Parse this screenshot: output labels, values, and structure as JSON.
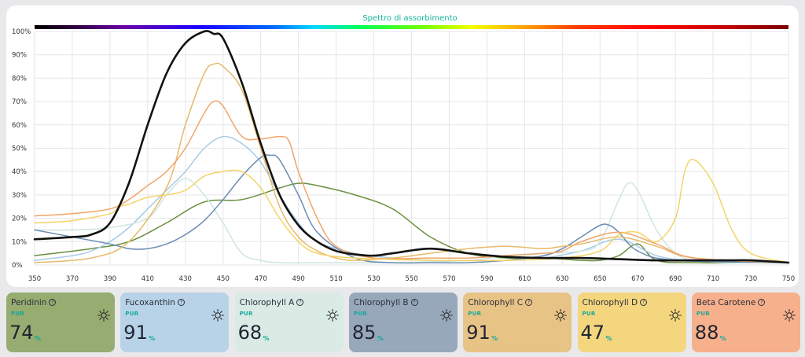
{
  "chart_data": {
    "type": "line",
    "title": "Spettro di assorbimento",
    "x_ticks": [
      350,
      370,
      390,
      410,
      430,
      450,
      470,
      490,
      510,
      530,
      550,
      570,
      590,
      610,
      630,
      650,
      670,
      690,
      710,
      730,
      750
    ],
    "y_ticks": [
      "0%",
      "10%",
      "20%",
      "30%",
      "40%",
      "50%",
      "60%",
      "70%",
      "80%",
      "90%",
      "100%"
    ],
    "xlim": [
      350,
      750
    ],
    "ylim": [
      0,
      100
    ],
    "grid": true,
    "legend": "none",
    "series": [
      {
        "color": "#6b8f3e",
        "x": [
          350,
          380,
          400,
          420,
          440,
          460,
          480,
          490,
          500,
          520,
          540,
          560,
          580,
          600,
          620,
          640,
          650,
          660,
          670,
          680,
          700,
          750
        ],
        "y": [
          4,
          7,
          10,
          18,
          27,
          28,
          33,
          35,
          34,
          30,
          24,
          12,
          5,
          3,
          3,
          2,
          2,
          4,
          9,
          2,
          1,
          1
        ]
      },
      {
        "color": "#a9cbe4",
        "x": [
          350,
          370,
          380,
          390,
          400,
          410,
          420,
          430,
          440,
          450,
          460,
          470,
          480,
          490,
          500,
          520,
          540,
          560,
          580,
          600,
          620,
          640,
          660,
          680,
          700,
          750
        ],
        "y": [
          2,
          4,
          6,
          10,
          16,
          24,
          32,
          40,
          50,
          55,
          52,
          44,
          30,
          18,
          10,
          5,
          3,
          2,
          2,
          2,
          3,
          6,
          11,
          4,
          2,
          1
        ]
      },
      {
        "color": "#cfe5df",
        "x": [
          350,
          370,
          390,
          410,
          420,
          430,
          440,
          450,
          460,
          470,
          480,
          500,
          540,
          580,
          600,
          620,
          640,
          650,
          660,
          665,
          670,
          680,
          690,
          700,
          720,
          750
        ],
        "y": [
          15,
          15,
          16,
          20,
          30,
          37,
          30,
          18,
          5,
          2,
          1,
          1,
          1,
          2,
          4,
          5,
          6,
          10,
          28,
          35,
          32,
          15,
          5,
          2,
          1,
          1
        ]
      },
      {
        "color": "#6b8cb3",
        "x": [
          350,
          370,
          390,
          400,
          410,
          420,
          430,
          440,
          450,
          460,
          470,
          475,
          480,
          490,
          500,
          520,
          540,
          560,
          580,
          600,
          620,
          630,
          640,
          650,
          655,
          660,
          670,
          690,
          750
        ],
        "y": [
          15,
          12,
          9,
          7,
          7,
          9,
          13,
          19,
          28,
          38,
          46,
          47,
          45,
          30,
          14,
          3,
          1,
          1,
          1,
          2,
          4,
          7,
          12,
          17,
          17,
          14,
          6,
          2,
          1
        ]
      },
      {
        "color": "#e6b969",
        "x": [
          350,
          380,
          400,
          420,
          430,
          440,
          445,
          450,
          460,
          470,
          480,
          490,
          500,
          510,
          520,
          540,
          560,
          580,
          600,
          620,
          630,
          640,
          660,
          680,
          700,
          750
        ],
        "y": [
          1,
          3,
          10,
          33,
          60,
          82,
          86,
          85,
          75,
          50,
          25,
          12,
          6,
          3,
          2,
          3,
          5,
          7,
          8,
          7,
          8,
          9,
          12,
          8,
          3,
          1
        ]
      },
      {
        "color": "#f1a56a",
        "x": [
          350,
          370,
          390,
          400,
          410,
          420,
          430,
          440,
          445,
          450,
          460,
          470,
          480,
          485,
          490,
          500,
          510,
          530,
          560,
          580,
          600,
          620,
          630,
          640,
          660,
          680,
          700,
          750
        ],
        "y": [
          21,
          22,
          24,
          28,
          34,
          40,
          50,
          65,
          70,
          68,
          55,
          54,
          55,
          53,
          40,
          20,
          8,
          3,
          3,
          3,
          4,
          5,
          6,
          10,
          14,
          9,
          3,
          1
        ]
      },
      {
        "color": "#f4d467",
        "x": [
          350,
          370,
          390,
          395,
          400,
          410,
          420,
          430,
          440,
          450,
          460,
          470,
          480,
          490,
          500,
          520,
          560,
          600,
          630,
          650,
          660,
          670,
          680,
          690,
          695,
          700,
          710,
          720,
          730,
          750
        ],
        "y": [
          18,
          19,
          22,
          25,
          26,
          29,
          30,
          32,
          38,
          40,
          40,
          33,
          20,
          10,
          5,
          3,
          2,
          2,
          3,
          6,
          13,
          14,
          10,
          20,
          40,
          45,
          35,
          15,
          5,
          1
        ]
      },
      {
        "color": "#111111",
        "x": [
          350,
          370,
          380,
          390,
          400,
          410,
          420,
          430,
          440,
          445,
          450,
          460,
          470,
          480,
          490,
          500,
          510,
          520,
          530,
          540,
          560,
          580,
          600,
          620,
          640,
          660,
          680,
          700,
          720,
          730,
          750
        ],
        "y": [
          11,
          12,
          13,
          18,
          35,
          60,
          82,
          95,
          100,
          99,
          97,
          78,
          52,
          30,
          17,
          10,
          6,
          4.5,
          4,
          5,
          7,
          5,
          3.5,
          3,
          3,
          2.5,
          2,
          2,
          2,
          2,
          1
        ]
      }
    ]
  },
  "cards": [
    {
      "name": "Peridinin",
      "pur": "PUR",
      "value": "74",
      "unit": "%",
      "color": "#97ac70"
    },
    {
      "name": "Fucoxanthin",
      "pur": "PUR",
      "value": "91",
      "unit": "%",
      "color": "#b8d3e8"
    },
    {
      "name": "Chlorophyll A",
      "pur": "PUR",
      "value": "68",
      "unit": "%",
      "color": "#d9ebe4"
    },
    {
      "name": "Chlorophyll B",
      "pur": "PUR",
      "value": "85",
      "unit": "%",
      "color": "#98a8bb"
    },
    {
      "name": "Chlorophyll C",
      "pur": "PUR",
      "value": "91",
      "unit": "%",
      "color": "#e8c386"
    },
    {
      "name": "Chlorophyll D",
      "pur": "PUR",
      "value": "47",
      "unit": "%",
      "color": "#f3d67e"
    },
    {
      "name": "Beta Carotene",
      "pur": "PUR",
      "value": "88",
      "unit": "%",
      "color": "#f7b08c"
    }
  ],
  "icons": {
    "help": "?",
    "sun": "sun-icon"
  },
  "title_color": "#15b39c"
}
